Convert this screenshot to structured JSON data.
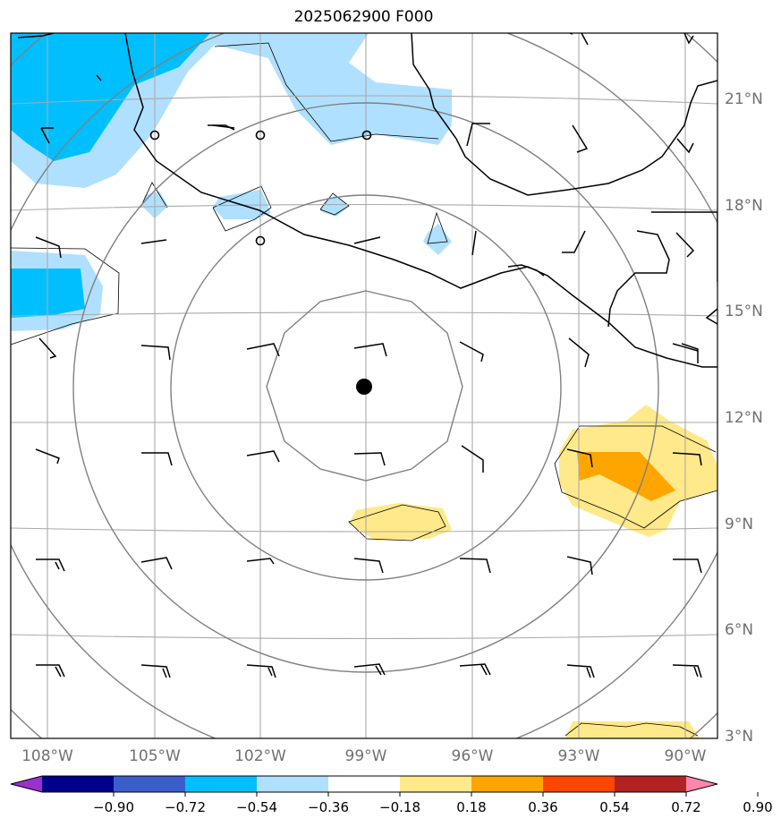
{
  "title": "2025062900 F000",
  "lat_labels": [
    "21°N",
    "18°N",
    "15°N",
    "12°N",
    "9°N",
    "6°N",
    "3°N"
  ],
  "lon_labels": [
    "108°W",
    "105°W",
    "102°W",
    "99°W",
    "96°W",
    "93°W",
    "90°W"
  ],
  "colorbar": {
    "tick_labels": [
      "−0.90",
      "−0.72",
      "−0.54",
      "−0.36",
      "−0.18",
      "0.18",
      "0.36",
      "0.54",
      "0.72",
      "0.90"
    ],
    "colors": [
      "#9932cc",
      "#00008b",
      "#3a5fcd",
      "#00bfff",
      "#b0e0ff",
      "#ffffff",
      "#ffe98a",
      "#ffa500",
      "#ff4500",
      "#b22222",
      "#ff88aa"
    ]
  },
  "center_marker": "storm-center-dot"
}
